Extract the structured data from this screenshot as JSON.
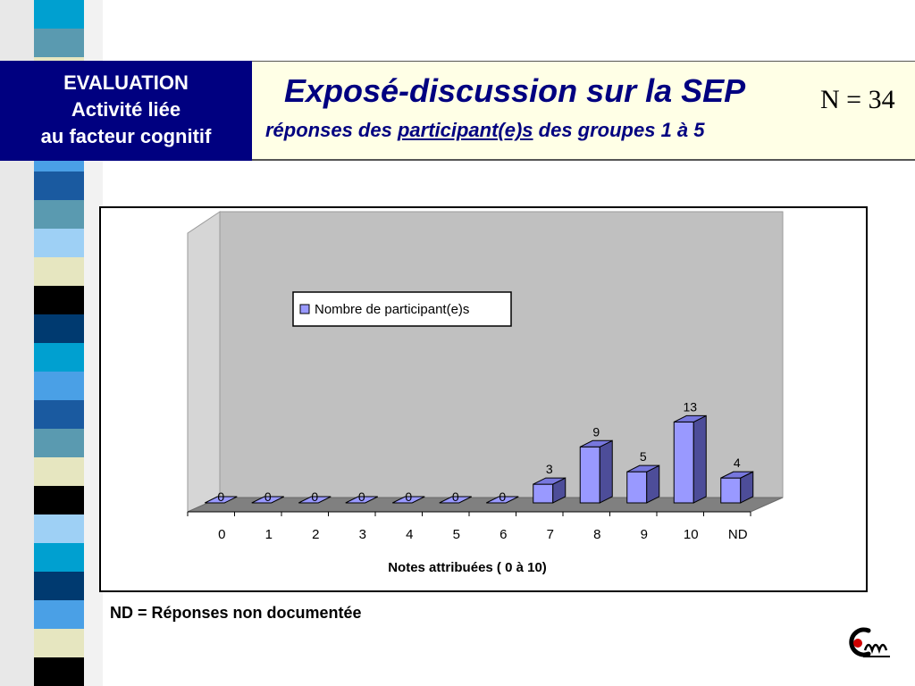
{
  "header": {
    "left_lines": [
      "EVALUATION",
      "Activité liée",
      "au facteur cognitif"
    ],
    "title": "Exposé-discussion sur la SEP",
    "subtitle_pre": "réponses des ",
    "subtitle_underlined": "participant(e)s",
    "subtitle_post": " des groupes 1 à 5",
    "n_value": "N = 34"
  },
  "chart_data": {
    "type": "bar",
    "categories": [
      "0",
      "1",
      "2",
      "3",
      "4",
      "5",
      "6",
      "7",
      "8",
      "9",
      "10",
      "ND"
    ],
    "series": [
      {
        "name": "Nombre de participant(e)s",
        "values": [
          0,
          0,
          0,
          0,
          0,
          0,
          0,
          3,
          9,
          5,
          13,
          4
        ]
      }
    ],
    "xlabel": "Notes attribuées ( 0 à 10)",
    "ylabel": "",
    "ylim": [
      0,
      13
    ],
    "legend_position": "top-left",
    "three_d": true,
    "colors": {
      "bar_front": "#9999ff",
      "bar_side": "#4d4d99",
      "bar_top": "#7777dd",
      "plot_wall": "#c0c0c0",
      "floor": "#808080"
    }
  },
  "footnote": "ND = Réponses non documentée",
  "logo": {
    "icon": "cm-logo"
  },
  "decor": {
    "stripe_colors": [
      "#00a0d0",
      "#5a9ab0",
      "#e6e6c0",
      "#000000",
      "#003a70",
      "#4aa0e6",
      "#1a5aa0",
      "#9ed0f5"
    ]
  }
}
